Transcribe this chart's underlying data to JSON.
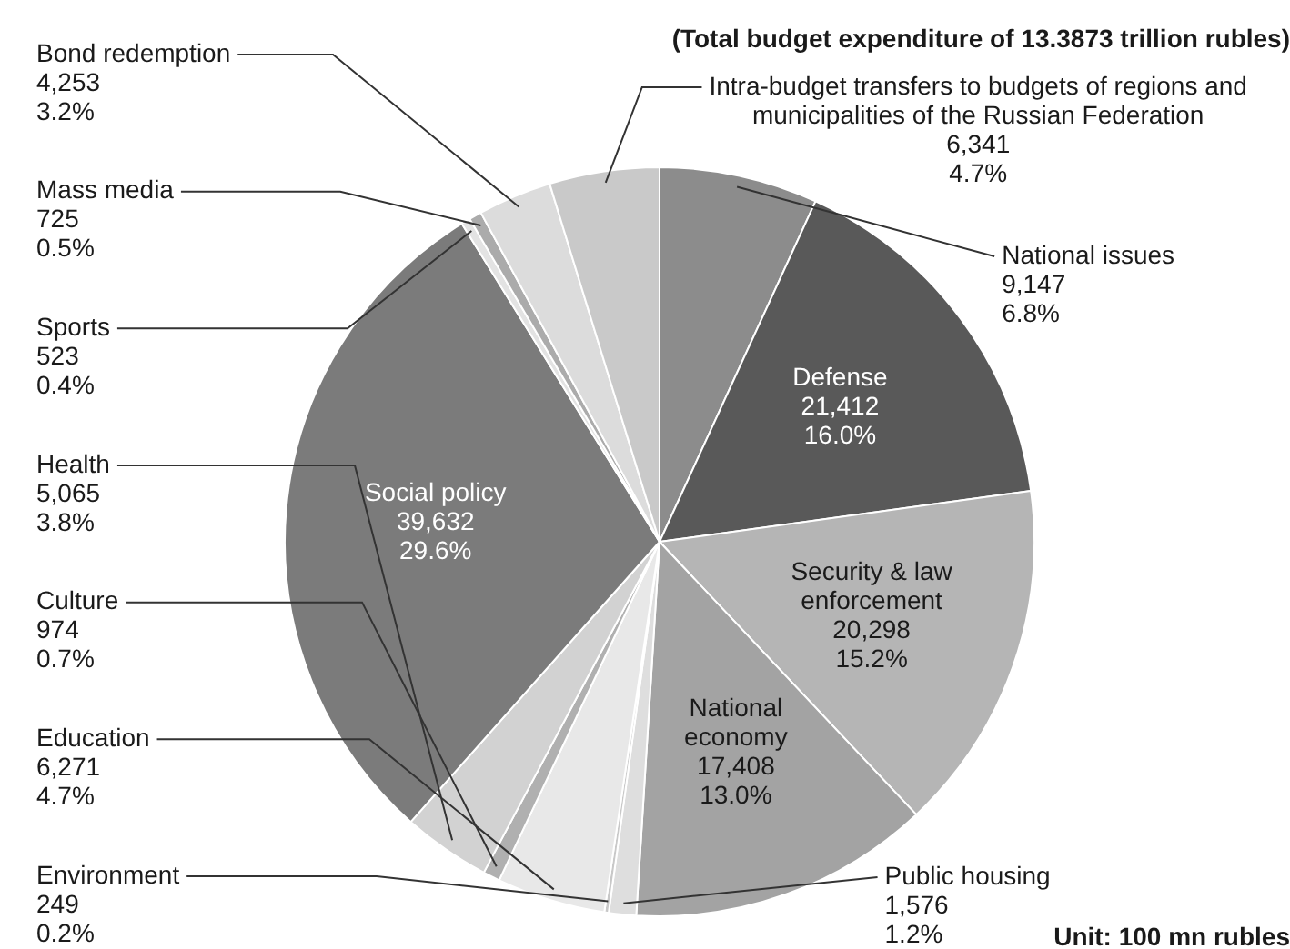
{
  "chart_data": {
    "type": "pie",
    "title": "(Total budget expenditure of 13.3873 trillion rubles)",
    "categories": [
      "National issues",
      "Defense",
      "Security & law enforcement",
      "National economy",
      "Public housing",
      "Environment",
      "Education",
      "Culture",
      "Health",
      "Social policy",
      "Sports",
      "Mass media",
      "Bond redemption",
      "Intra-budget transfers to budgets of regions and municipalities of the Russian Federation"
    ],
    "values": [
      9147,
      21412,
      20298,
      17408,
      1576,
      249,
      6271,
      974,
      5065,
      39632,
      523,
      725,
      4253,
      6341
    ],
    "value_labels": [
      "9,147\n6.8%",
      "21,412\n16.0%",
      "20,298\n15.2%",
      "17,408\n13.0%",
      "1,576\n1.2%",
      "249\n0.2%",
      "6,271\n4.7%",
      "974\n0.7%",
      "5,065\n3.8%",
      "39,632\n29.6%",
      "523\n0.4%",
      "725\n0.5%",
      "4,253\n3.2%",
      "6,341\n4.7%"
    ],
    "colors": [
      "#8c8c8c",
      "#595959",
      "#b5b5b5",
      "#a3a3a3",
      "#dedede",
      "#c8c8c8",
      "#e8e8e8",
      "#b0b0b0",
      "#d2d2d2",
      "#7b7b7b",
      "#e3e3e3",
      "#ababab",
      "#dcdcdc",
      "#c9c9c9"
    ],
    "annotations": [
      "Unit: 100 mn rubles"
    ]
  }
}
